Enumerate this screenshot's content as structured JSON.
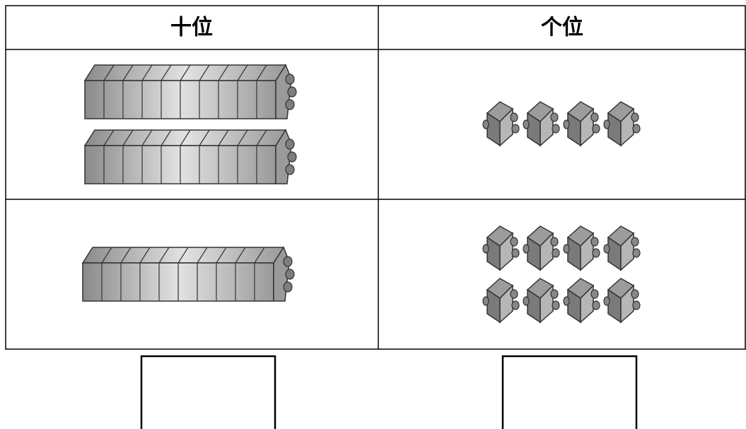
{
  "table": {
    "headers": [
      "十位",
      "个位"
    ]
  }
}
